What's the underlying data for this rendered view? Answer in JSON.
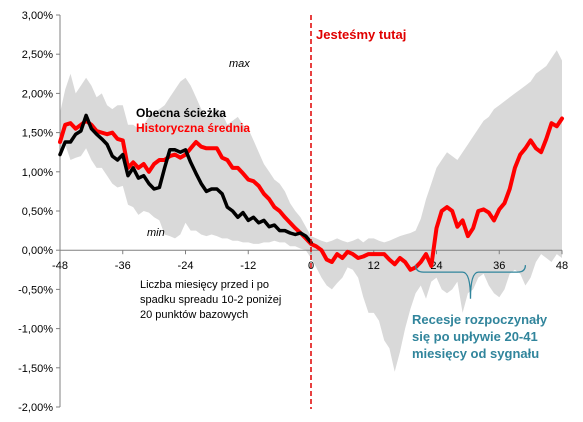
{
  "chart_data": {
    "type": "line",
    "ylim": [
      -2.0,
      3.0
    ],
    "xlim": [
      -48,
      48
    ],
    "x_ticks": [
      -48,
      -36,
      -24,
      -12,
      0,
      12,
      24,
      36,
      48
    ],
    "y_tick_labels": [
      "3,00%",
      "2,50%",
      "2,00%",
      "1,50%",
      "1,00%",
      "0,50%",
      "0,00%",
      "-0,50%",
      "-1,00%",
      "-1,50%",
      "-2,00%"
    ],
    "y_ticks": [
      3.0,
      2.5,
      2.0,
      1.5,
      1.0,
      0.5,
      0.0,
      -0.5,
      -1.0,
      -1.5,
      -2.0
    ],
    "grid": false,
    "series": [
      {
        "name": "Obecna ścieżka",
        "color": "#000000",
        "x": [
          -48,
          -47,
          -46,
          -45,
          -44,
          -43,
          -42,
          -41,
          -40,
          -39,
          -38,
          -37,
          -36,
          -35,
          -34,
          -33,
          -32,
          -31,
          -30,
          -29,
          -28,
          -27,
          -26,
          -25,
          -24,
          -23,
          -22,
          -21,
          -20,
          -19,
          -18,
          -17,
          -16,
          -15,
          -14,
          -13,
          -12,
          -11,
          -10,
          -9,
          -8,
          -7,
          -6,
          -5,
          -4,
          -3,
          -2,
          -1,
          0
        ],
        "values": [
          1.22,
          1.38,
          1.38,
          1.48,
          1.52,
          1.72,
          1.55,
          1.48,
          1.42,
          1.35,
          1.2,
          1.15,
          1.22,
          0.95,
          1.05,
          0.92,
          0.95,
          0.85,
          0.78,
          0.8,
          1.05,
          1.28,
          1.28,
          1.25,
          1.28,
          1.12,
          0.98,
          0.85,
          0.75,
          0.78,
          0.78,
          0.72,
          0.55,
          0.5,
          0.42,
          0.48,
          0.38,
          0.42,
          0.35,
          0.38,
          0.3,
          0.32,
          0.25,
          0.25,
          0.22,
          0.2,
          0.22,
          0.18,
          0.1
        ]
      },
      {
        "name": "Historyczna średnia",
        "color": "#ff0000",
        "x": [
          -48,
          -47,
          -46,
          -45,
          -44,
          -43,
          -42,
          -41,
          -40,
          -39,
          -38,
          -37,
          -36,
          -35,
          -34,
          -33,
          -32,
          -31,
          -30,
          -29,
          -28,
          -27,
          -26,
          -25,
          -24,
          -23,
          -22,
          -21,
          -20,
          -19,
          -18,
          -17,
          -16,
          -15,
          -14,
          -13,
          -12,
          -11,
          -10,
          -9,
          -8,
          -7,
          -6,
          -5,
          -4,
          -3,
          -2,
          -1,
          0,
          1,
          2,
          3,
          4,
          5,
          6,
          7,
          8,
          9,
          10,
          11,
          12,
          13,
          14,
          15,
          16,
          17,
          18,
          19,
          20,
          21,
          22,
          23,
          24,
          25,
          26,
          27,
          28,
          29,
          30,
          31,
          32,
          33,
          34,
          35,
          36,
          37,
          38,
          39,
          40,
          41,
          42,
          43,
          44,
          45,
          46,
          47,
          48
        ],
        "values": [
          1.38,
          1.6,
          1.62,
          1.55,
          1.6,
          1.65,
          1.6,
          1.52,
          1.5,
          1.48,
          1.5,
          1.42,
          1.4,
          1.05,
          1.12,
          1.05,
          1.1,
          1.0,
          1.1,
          1.15,
          1.15,
          1.2,
          1.22,
          1.18,
          1.22,
          1.3,
          1.38,
          1.32,
          1.3,
          1.3,
          1.3,
          1.18,
          1.15,
          1.05,
          1.05,
          0.98,
          0.9,
          0.88,
          0.82,
          0.72,
          0.65,
          0.55,
          0.5,
          0.42,
          0.35,
          0.28,
          0.22,
          0.15,
          0.08,
          0.05,
          0.0,
          -0.12,
          -0.15,
          -0.05,
          -0.1,
          -0.02,
          -0.05,
          -0.1,
          -0.08,
          -0.05,
          -0.05,
          -0.05,
          -0.05,
          -0.12,
          -0.18,
          -0.1,
          -0.15,
          -0.25,
          -0.22,
          -0.15,
          -0.05,
          -0.2,
          0.28,
          0.5,
          0.55,
          0.5,
          0.3,
          0.38,
          0.18,
          0.28,
          0.5,
          0.52,
          0.48,
          0.38,
          0.52,
          0.6,
          0.78,
          1.05,
          1.22,
          1.3,
          1.4,
          1.3,
          1.25,
          1.42,
          1.62,
          1.58,
          1.68
        ]
      }
    ],
    "band": {
      "x": [
        -48,
        -47,
        -46,
        -45,
        -44,
        -43,
        -42,
        -41,
        -40,
        -39,
        -38,
        -37,
        -36,
        -35,
        -34,
        -33,
        -32,
        -31,
        -30,
        -29,
        -28,
        -27,
        -26,
        -25,
        -24,
        -23,
        -22,
        -21,
        -20,
        -19,
        -18,
        -17,
        -16,
        -15,
        -14,
        -13,
        -12,
        -11,
        -10,
        -9,
        -8,
        -7,
        -6,
        -5,
        -4,
        -3,
        -2,
        -1,
        0,
        1,
        2,
        3,
        4,
        5,
        6,
        7,
        8,
        9,
        10,
        11,
        12,
        13,
        14,
        15,
        16,
        17,
        18,
        19,
        20,
        21,
        22,
        23,
        24,
        25,
        26,
        27,
        28,
        29,
        30,
        31,
        32,
        33,
        34,
        35,
        36,
        37,
        38,
        39,
        40,
        41,
        42,
        43,
        44,
        45,
        46,
        47,
        48
      ],
      "max": [
        1.75,
        2.05,
        2.25,
        2.0,
        2.1,
        2.2,
        2.1,
        1.95,
        2.0,
        1.85,
        1.8,
        1.85,
        1.85,
        1.6,
        1.6,
        1.55,
        1.6,
        1.7,
        1.75,
        1.8,
        1.85,
        1.95,
        2.05,
        2.15,
        2.2,
        2.1,
        1.95,
        1.8,
        1.7,
        1.75,
        1.8,
        1.75,
        1.6,
        1.65,
        1.7,
        1.6,
        1.55,
        1.4,
        1.25,
        1.1,
        1.0,
        0.9,
        0.85,
        0.75,
        0.6,
        0.5,
        0.42,
        0.3,
        0.18,
        0.15,
        0.12,
        0.1,
        0.12,
        0.15,
        0.12,
        0.1,
        0.12,
        0.15,
        0.1,
        0.15,
        0.15,
        0.12,
        0.1,
        0.12,
        0.15,
        0.18,
        0.2,
        0.22,
        0.25,
        0.4,
        0.65,
        0.85,
        1.05,
        1.15,
        1.25,
        1.2,
        1.15,
        1.25,
        1.35,
        1.45,
        1.55,
        1.65,
        1.7,
        1.8,
        1.85,
        1.9,
        1.95,
        2.0,
        2.05,
        2.1,
        2.15,
        2.25,
        2.3,
        2.35,
        2.45,
        2.55,
        2.42
      ],
      "min": [
        1.25,
        1.35,
        1.15,
        1.18,
        1.2,
        1.3,
        1.15,
        1.05,
        1.05,
        0.95,
        0.85,
        0.8,
        0.82,
        0.58,
        0.55,
        0.45,
        0.5,
        0.48,
        0.42,
        0.38,
        0.2,
        0.18,
        0.15,
        0.2,
        0.35,
        0.25,
        0.25,
        0.2,
        0.18,
        0.2,
        0.18,
        0.15,
        0.15,
        0.12,
        0.12,
        0.1,
        0.1,
        0.08,
        0.08,
        0.1,
        0.1,
        0.12,
        0.1,
        0.1,
        0.05,
        0.05,
        0.02,
        0.0,
        -0.1,
        -0.22,
        -0.35,
        -0.45,
        -0.5,
        -0.42,
        -0.35,
        -0.22,
        -0.25,
        -0.35,
        -0.6,
        -0.8,
        -0.8,
        -0.9,
        -1.15,
        -1.25,
        -1.55,
        -1.3,
        -1.0,
        -0.75,
        -0.55,
        -0.45,
        -0.62,
        -0.4,
        -0.35,
        -0.5,
        -0.55,
        -0.5,
        -0.4,
        -0.8,
        -0.55,
        -0.5,
        -0.35,
        -0.3,
        -0.45,
        -0.55,
        -0.6,
        -0.5,
        -0.3,
        -0.25,
        -0.3,
        -0.45,
        -0.35,
        -0.15,
        -0.05,
        -0.1,
        -0.15,
        -0.05,
        -0.1
      ]
    },
    "now_marker_x": 0,
    "annotations": {
      "now_label": "Jesteśmy tutaj",
      "max_label": "max",
      "min_label": "min",
      "legend_current": "Obecna ścieżka",
      "legend_hist": "Historyczna średnia",
      "xaxis_desc_1": "Liczba miesięcy przed i po",
      "xaxis_desc_2": "spadku spreadu 10-2 poniżej",
      "xaxis_desc_3": "20 punktów bazowych",
      "recession_1": "Recesje rozpoczynały",
      "recession_2": "się po upływie 20-41",
      "recession_3": "miesięcy od sygnału"
    },
    "recession_range": [
      20,
      41
    ],
    "colors": {
      "band": "#d9d9d9",
      "current": "#000000",
      "historical": "#ff0000",
      "marker": "#e00000",
      "recession_text": "#31859c",
      "brace": "#31859c"
    }
  }
}
